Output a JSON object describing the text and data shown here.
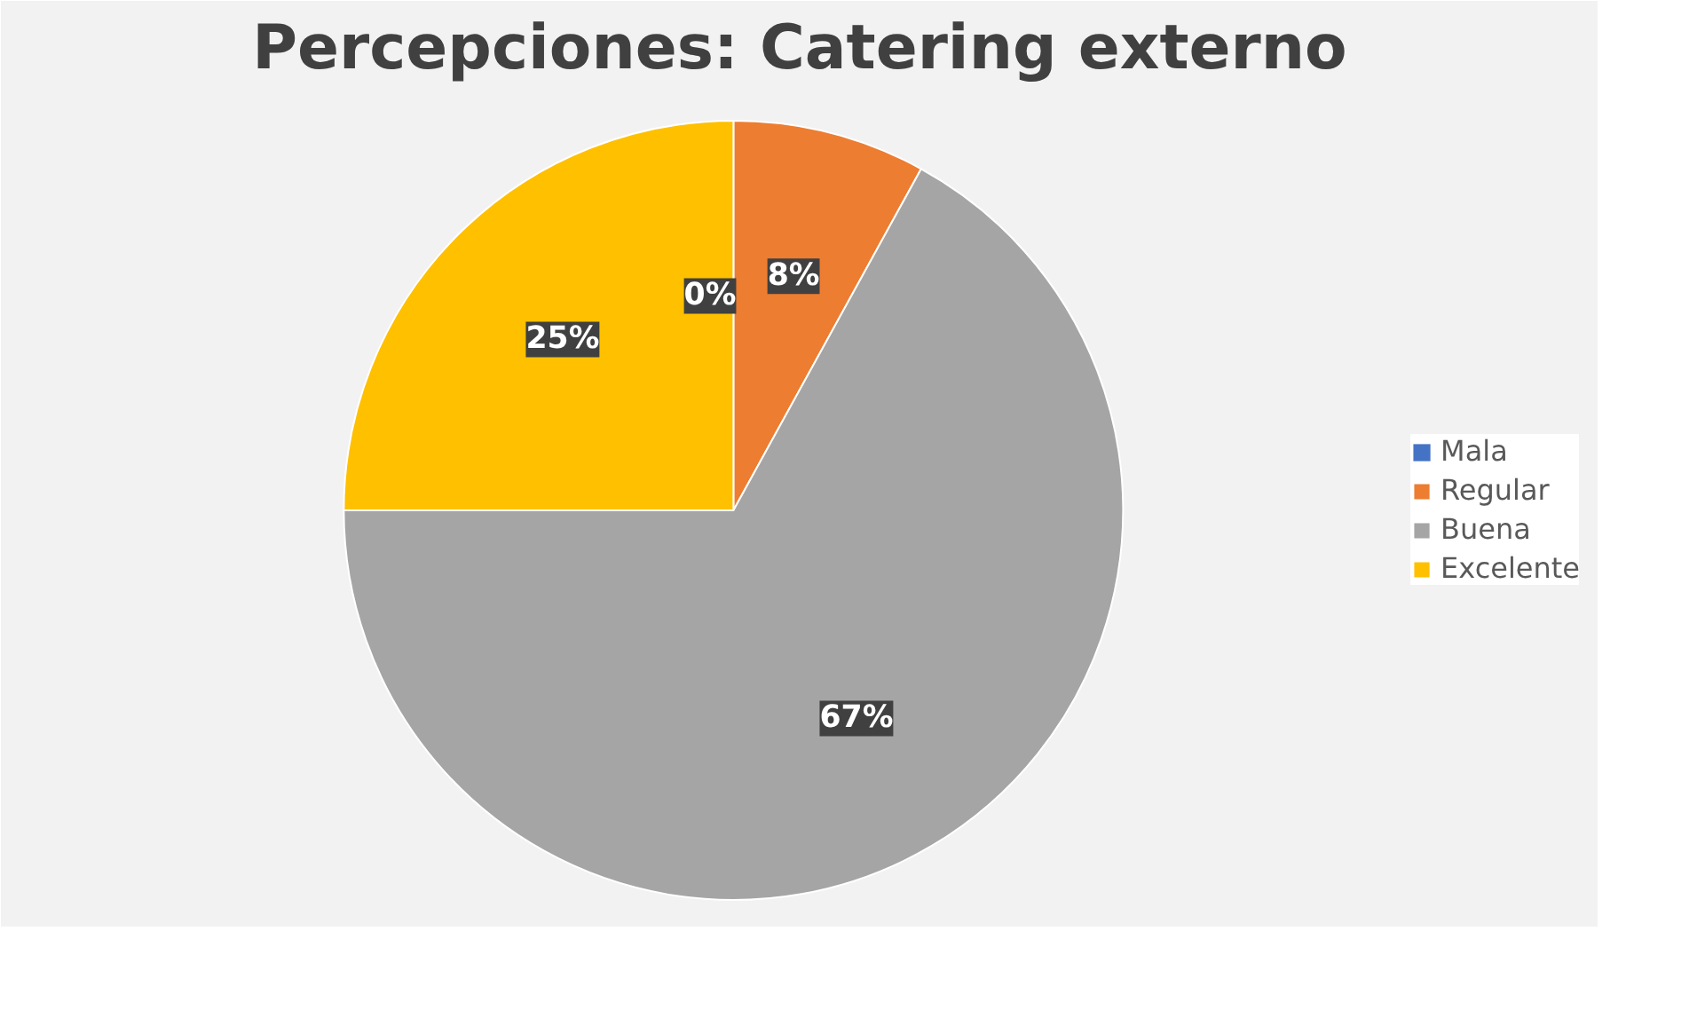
{
  "chart_data": {
    "type": "pie",
    "title": "Percepciones: Catering externo",
    "categories": [
      "Mala",
      "Regular",
      "Buena",
      "Excelente"
    ],
    "values": [
      0,
      8,
      67,
      25
    ],
    "value_labels": [
      "0%",
      "8%",
      "67%",
      "25%"
    ],
    "colors": [
      "#4472c4",
      "#ed7d31",
      "#a5a5a5",
      "#ffc000"
    ],
    "legend": "right"
  }
}
